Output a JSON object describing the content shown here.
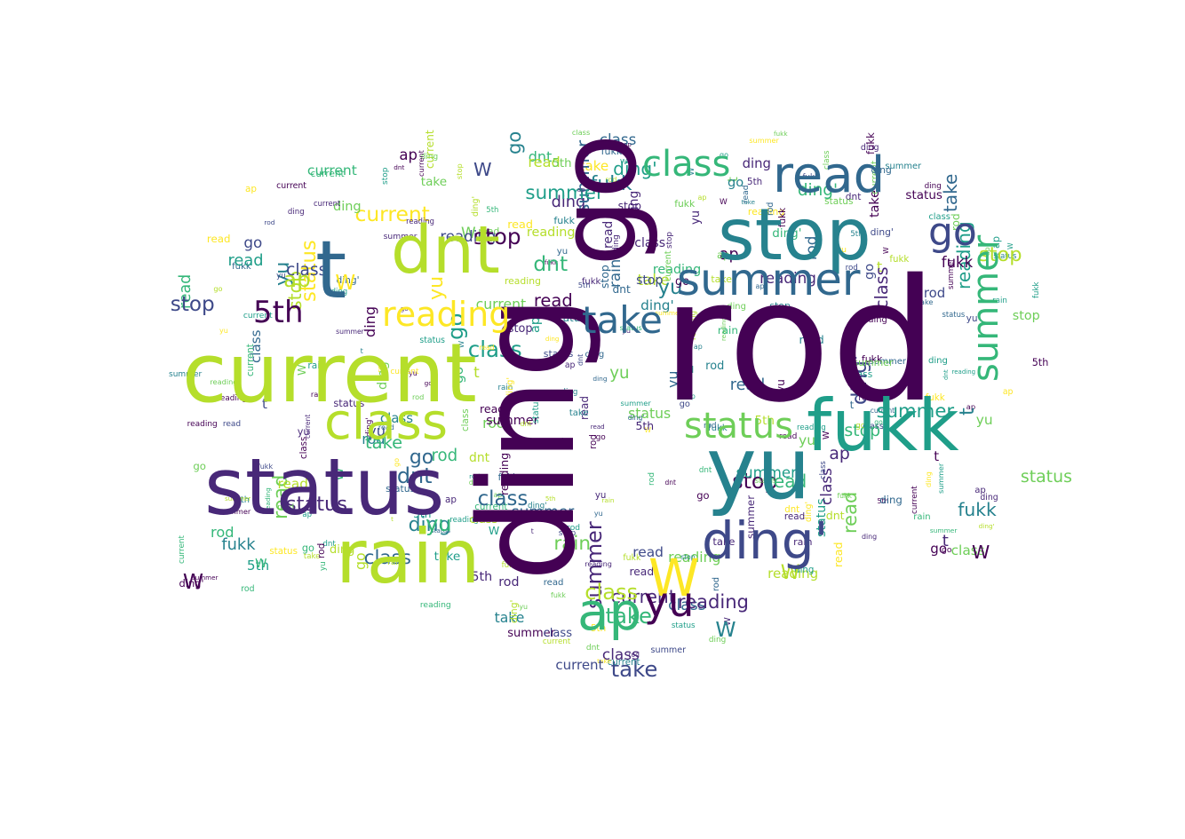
{
  "palette": [
    "#440154",
    "#482878",
    "#3e4989",
    "#31688e",
    "#26828e",
    "#1f9e89",
    "#35b779",
    "#6ece58",
    "#b5de2b",
    "#fde725"
  ],
  "main_words": [
    {
      "text": "ding",
      "color": "#440154",
      "vertical": true
    },
    {
      "text": "rod",
      "color": "#440154",
      "vertical": false
    },
    {
      "text": "go",
      "color": "#440154",
      "vertical": true
    },
    {
      "text": "current",
      "color": "#b5de2b",
      "vertical": false
    },
    {
      "text": "status",
      "color": "#482878",
      "vertical": false
    },
    {
      "text": "rain",
      "color": "#b5de2b",
      "vertical": false
    },
    {
      "text": "stop",
      "color": "#26828e",
      "vertical": false
    },
    {
      "text": "dnt",
      "color": "#b5de2b",
      "vertical": false
    },
    {
      "text": "t",
      "color": "#31688e",
      "vertical": false
    },
    {
      "text": "fukk",
      "color": "#1f9e89",
      "vertical": false
    },
    {
      "text": "yu",
      "color": "#26828e",
      "vertical": false
    },
    {
      "text": "class",
      "color": "#b5de2b",
      "vertical": false
    },
    {
      "text": "ding'",
      "color": "#3e4989",
      "vertical": false
    },
    {
      "text": "read",
      "color": "#31688e",
      "vertical": false
    },
    {
      "text": "summer",
      "color": "#31688e",
      "vertical": false
    },
    {
      "text": "ap",
      "color": "#35b779",
      "vertical": false
    },
    {
      "text": "reading",
      "color": "#fde725",
      "vertical": false
    },
    {
      "text": "take",
      "color": "#31688e",
      "vertical": false
    },
    {
      "text": "W",
      "color": "#fde725",
      "vertical": false
    },
    {
      "text": "5th",
      "color": "#440154",
      "vertical": false
    },
    {
      "text": "class",
      "color": "#35b779",
      "vertical": false
    },
    {
      "text": "status",
      "color": "#6ece58",
      "vertical": false
    },
    {
      "text": "summer",
      "color": "#35b779",
      "vertical": true
    },
    {
      "text": "yu",
      "color": "#440154",
      "vertical": false
    },
    {
      "text": "go",
      "color": "#3e4989",
      "vertical": false
    }
  ],
  "filler_words": [
    "ding",
    "rod",
    "go",
    "current",
    "status",
    "rain",
    "stop",
    "dnt",
    "t",
    "fukk",
    "yu",
    "class",
    "ding'",
    "read",
    "summer",
    "ap",
    "reading",
    "take",
    "W",
    "5th"
  ]
}
